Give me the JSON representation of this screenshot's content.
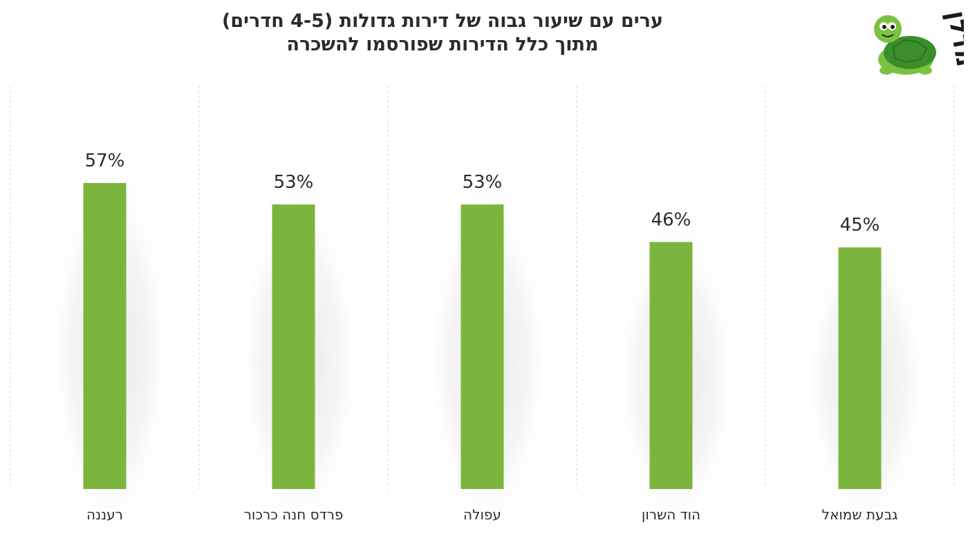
{
  "title_lines": [
    "ערים עם שיעור גבוה של דירות גדולות (4-5 חדרים)",
    "מתוך כלל הדירות שפורסמו להשכרה"
  ],
  "logo": {
    "text": "מדלן",
    "icon": "turtle-mascot-icon",
    "colors": {
      "shell": "#3a8f2a",
      "body": "#7cc242",
      "text": "#1c1c1c"
    }
  },
  "colors": {
    "bar": "#7cb53e",
    "gridline": "#d0d0d0",
    "text": "#2b2b2b"
  },
  "chart_data": {
    "type": "bar",
    "categories": [
      "רעננה",
      "פרדס חנה כרכור",
      "עפולה",
      "הוד השרון",
      "גבעת שמואל"
    ],
    "values": [
      57,
      53,
      53,
      46,
      45
    ],
    "value_labels": [
      "57%",
      "53%",
      "53%",
      "46%",
      "45%"
    ],
    "title": "ערים עם שיעור גבוה של דירות גדולות (4-5 חדרים) מתוך כלל הדירות שפורסמו להשכרה",
    "xlabel": "",
    "ylabel": "",
    "ylim": [
      0,
      75
    ],
    "grid": "vertical dashed separators",
    "legend": "none"
  }
}
